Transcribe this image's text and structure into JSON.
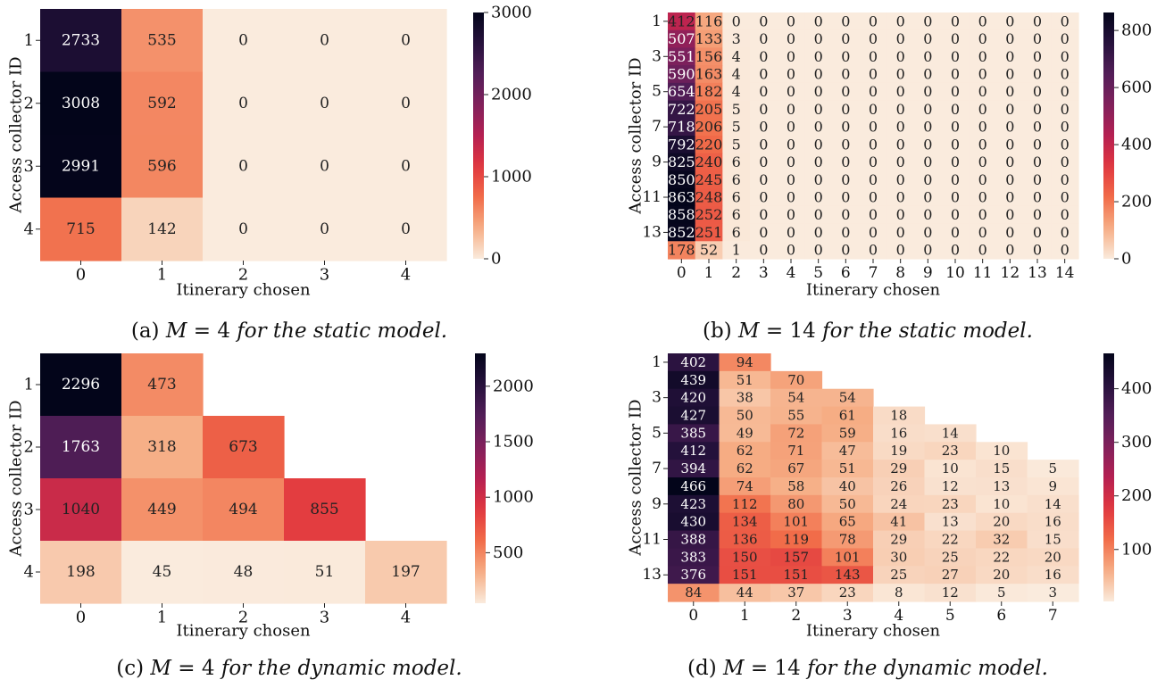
{
  "colors": {
    "edge_dark": "#03051a",
    "edge_light": "#faebdd"
  },
  "captions": [
    {
      "label": "(a)",
      "var": "M",
      "eq": "= 4",
      "rest": "for the static model."
    },
    {
      "label": "(b)",
      "var": "M",
      "eq": "= 14",
      "rest": "for the static model."
    },
    {
      "label": "(c)",
      "var": "M",
      "eq": "= 4",
      "rest": "for the dynamic model."
    },
    {
      "label": "(d)",
      "var": "M",
      "eq": "= 14",
      "rest": "for the dynamic model."
    }
  ],
  "chart_data": [
    {
      "type": "heatmap",
      "xlabel": "Itinerary chosen",
      "ylabel": "Access collector ID",
      "x_ticks": [
        "0",
        "1",
        "2",
        "3",
        "4"
      ],
      "y_ticks": [
        "1",
        "2",
        "3",
        "4"
      ],
      "colorbar": {
        "vmin": 0,
        "vmax": 3000,
        "ticks": [
          0,
          1000,
          2000,
          3000
        ]
      },
      "values": [
        [
          2733,
          535,
          0,
          0,
          0
        ],
        [
          3008,
          592,
          0,
          0,
          0
        ],
        [
          2991,
          596,
          0,
          0,
          0
        ],
        [
          715,
          142,
          0,
          0,
          0
        ]
      ]
    },
    {
      "type": "heatmap",
      "xlabel": "Itinerary chosen",
      "ylabel": "Access collector ID",
      "x_ticks": [
        "0",
        "1",
        "2",
        "3",
        "4",
        "5",
        "6",
        "7",
        "8",
        "9",
        "10",
        "11",
        "12",
        "13",
        "14"
      ],
      "y_ticks": [
        "1",
        "",
        "3",
        "",
        "5",
        "",
        "7",
        "",
        "9",
        "",
        "11",
        "",
        "13",
        ""
      ],
      "colorbar": {
        "vmin": 0,
        "vmax": 863,
        "ticks": [
          0,
          200,
          400,
          600,
          800
        ]
      },
      "values": [
        [
          412,
          116,
          0,
          0,
          0,
          0,
          0,
          0,
          0,
          0,
          0,
          0,
          0,
          0,
          0
        ],
        [
          507,
          133,
          3,
          0,
          0,
          0,
          0,
          0,
          0,
          0,
          0,
          0,
          0,
          0,
          0
        ],
        [
          551,
          156,
          4,
          0,
          0,
          0,
          0,
          0,
          0,
          0,
          0,
          0,
          0,
          0,
          0
        ],
        [
          590,
          163,
          4,
          0,
          0,
          0,
          0,
          0,
          0,
          0,
          0,
          0,
          0,
          0,
          0
        ],
        [
          654,
          182,
          4,
          0,
          0,
          0,
          0,
          0,
          0,
          0,
          0,
          0,
          0,
          0,
          0
        ],
        [
          722,
          205,
          5,
          0,
          0,
          0,
          0,
          0,
          0,
          0,
          0,
          0,
          0,
          0,
          0
        ],
        [
          718,
          206,
          5,
          0,
          0,
          0,
          0,
          0,
          0,
          0,
          0,
          0,
          0,
          0,
          0
        ],
        [
          792,
          220,
          5,
          0,
          0,
          0,
          0,
          0,
          0,
          0,
          0,
          0,
          0,
          0,
          0
        ],
        [
          825,
          240,
          6,
          0,
          0,
          0,
          0,
          0,
          0,
          0,
          0,
          0,
          0,
          0,
          0
        ],
        [
          850,
          245,
          6,
          0,
          0,
          0,
          0,
          0,
          0,
          0,
          0,
          0,
          0,
          0,
          0
        ],
        [
          863,
          248,
          6,
          0,
          0,
          0,
          0,
          0,
          0,
          0,
          0,
          0,
          0,
          0,
          0
        ],
        [
          858,
          252,
          6,
          0,
          0,
          0,
          0,
          0,
          0,
          0,
          0,
          0,
          0,
          0,
          0
        ],
        [
          852,
          251,
          6,
          0,
          0,
          0,
          0,
          0,
          0,
          0,
          0,
          0,
          0,
          0,
          0
        ],
        [
          178,
          52,
          1,
          0,
          0,
          0,
          0,
          0,
          0,
          0,
          0,
          0,
          0,
          0,
          0
        ]
      ]
    },
    {
      "type": "heatmap",
      "xlabel": "Itinerary chosen",
      "ylabel": "Access collector ID",
      "x_ticks": [
        "0",
        "1",
        "2",
        "3",
        "4"
      ],
      "y_ticks": [
        "1",
        "2",
        "3",
        "4"
      ],
      "colorbar": {
        "vmin": 45,
        "vmax": 2296,
        "ticks": [
          500,
          1000,
          1500,
          2000
        ]
      },
      "values": [
        [
          2296,
          473,
          null,
          null,
          null
        ],
        [
          1763,
          318,
          673,
          null,
          null
        ],
        [
          1040,
          449,
          494,
          855,
          null
        ],
        [
          198,
          45,
          48,
          51,
          197
        ]
      ]
    },
    {
      "type": "heatmap",
      "xlabel": "Itinerary chosen",
      "ylabel": "Access collector ID",
      "x_ticks": [
        "0",
        "1",
        "2",
        "3",
        "4",
        "5",
        "6",
        "7"
      ],
      "y_ticks": [
        "1",
        "",
        "3",
        "",
        "5",
        "",
        "7",
        "",
        "9",
        "",
        "11",
        "",
        "13",
        ""
      ],
      "colorbar": {
        "vmin": 3,
        "vmax": 466,
        "ticks": [
          100,
          200,
          300,
          400
        ]
      },
      "values": [
        [
          402,
          94,
          null,
          null,
          null,
          null,
          null,
          null
        ],
        [
          439,
          51,
          70,
          null,
          null,
          null,
          null,
          null
        ],
        [
          420,
          38,
          54,
          54,
          null,
          null,
          null,
          null
        ],
        [
          427,
          50,
          55,
          61,
          18,
          null,
          null,
          null
        ],
        [
          385,
          49,
          72,
          59,
          16,
          14,
          null,
          null
        ],
        [
          412,
          62,
          71,
          47,
          19,
          23,
          10,
          null
        ],
        [
          394,
          62,
          67,
          51,
          29,
          10,
          15,
          5
        ],
        [
          466,
          74,
          58,
          40,
          26,
          12,
          13,
          9
        ],
        [
          423,
          112,
          80,
          50,
          24,
          23,
          10,
          14
        ],
        [
          430,
          134,
          101,
          65,
          41,
          13,
          20,
          16
        ],
        [
          388,
          136,
          119,
          78,
          29,
          22,
          32,
          15
        ],
        [
          383,
          150,
          157,
          101,
          30,
          25,
          22,
          20
        ],
        [
          376,
          151,
          151,
          143,
          25,
          27,
          20,
          16
        ],
        [
          84,
          44,
          37,
          23,
          8,
          12,
          5,
          3
        ]
      ]
    }
  ]
}
